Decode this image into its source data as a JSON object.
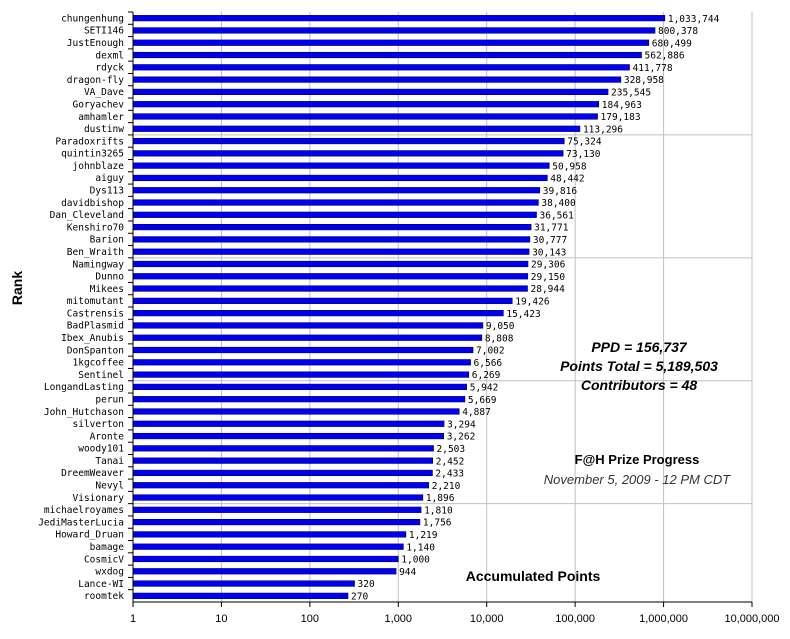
{
  "chart_data": {
    "type": "bar",
    "orientation": "horizontal",
    "x_scale": "log",
    "xlim": [
      1,
      10000000
    ],
    "x_ticks": [
      "1",
      "10",
      "100",
      "1,000",
      "10,000",
      "100,000",
      "1,000,000",
      "10,000,000"
    ],
    "ylabel": "Rank",
    "xlabel": "Accumulated Points",
    "title": "F@H Prize Progress",
    "subtitle": "November 5, 2009 - 12 PM CDT",
    "stats": [
      "PPD = 156,737",
      "Points Total = 5,189,503",
      "Contributors = 48"
    ],
    "bar_color": "#0000ee",
    "grid": "vertical and every 10 rows",
    "categories": [
      "chungenhung",
      "SETI146",
      "JustEnough",
      "dexml",
      "rdyck",
      "dragon-fly",
      "VA_Dave",
      "Goryachev",
      "amhamler",
      "dustinw",
      "Paradoxrifts",
      "quintin3265",
      "johnblaze",
      "aiguy",
      "Dys113",
      "davidbishop",
      "Dan_Cleveland",
      "Kenshiro70",
      "Barion",
      "Ben_Wraith",
      "Namingway",
      "Dunno",
      "Mikees",
      "mitomutant",
      "Castrensis",
      "BadPlasmid",
      "Ibex_Anubis",
      "DonSpanton",
      "1kgcoffee",
      "Sentinel",
      "LongandLasting",
      "perun",
      "John_Hutchason",
      "silverton",
      "Aronte",
      "woody101",
      "Tanai",
      "DreemWeaver",
      "Nevyl",
      "Visionary",
      "michaelroyames",
      "JediMasterLucia",
      "Howard_Druan",
      "bamage",
      "CosmicV",
      "wxdog",
      "Lance-WI",
      "roomtek"
    ],
    "values": [
      1033744,
      800378,
      680499,
      562886,
      411778,
      328958,
      235545,
      184963,
      179183,
      113296,
      75324,
      73130,
      50958,
      48442,
      39816,
      38400,
      36561,
      31771,
      30777,
      30143,
      29306,
      29150,
      28944,
      19426,
      15423,
      9050,
      8808,
      7002,
      6566,
      6269,
      5942,
      5669,
      4887,
      3294,
      3262,
      2503,
      2452,
      2433,
      2210,
      1896,
      1810,
      1756,
      1219,
      1140,
      1000,
      944,
      320,
      270
    ],
    "value_labels": [
      "1,033,744",
      "800,378",
      "680,499",
      "562,886",
      "411,778",
      "328,958",
      "235,545",
      "184,963",
      "179,183",
      "113,296",
      "75,324",
      "73,130",
      "50,958",
      "48,442",
      "39,816",
      "38,400",
      "36,561",
      "31,771",
      "30,777",
      "30,143",
      "29,306",
      "29,150",
      "28,944",
      "19,426",
      "15,423",
      "9,050",
      "8,808",
      "7,002",
      "6,566",
      "6,269",
      "5,942",
      "5,669",
      "4,887",
      "3,294",
      "3,262",
      "2,503",
      "2,452",
      "2,433",
      "2,210",
      "1,896",
      "1,810",
      "1,756",
      "1,219",
      "1,140",
      "1,000",
      "944",
      "320",
      "270"
    ]
  }
}
